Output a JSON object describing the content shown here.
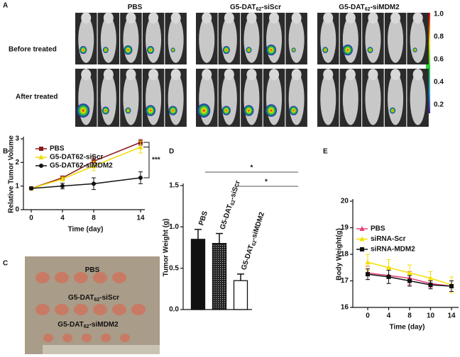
{
  "panel_labels": [
    "A",
    "B",
    "C",
    "D",
    "E"
  ],
  "panel_a": {
    "groups": [
      [
        "PBS"
      ],
      [
        "G5-DAT",
        "62",
        "-siScr"
      ],
      [
        "G5-DAT",
        "62",
        "-siMDM2"
      ]
    ],
    "rows": [
      "Before treated",
      "After treated"
    ],
    "colorbar_ticks": [
      "1.0",
      "0.8",
      "0.6",
      "0.4",
      "0.2"
    ]
  },
  "panel_c": {
    "labels": [
      [
        "PBS"
      ],
      [
        "G5-DAT",
        "62",
        "-siScr"
      ],
      [
        "G5-DAT",
        "62",
        "-siMDM2"
      ]
    ]
  },
  "chart_data": [
    {
      "type": "line",
      "ylabel": "Relative Tumor Volume",
      "xlabel": "Time (day)",
      "x": [
        0,
        4,
        8,
        14
      ],
      "xlim": [
        0,
        14
      ],
      "xticks": [
        0,
        4,
        8,
        14
      ],
      "ylim": [
        0,
        3
      ],
      "yticks": [
        0,
        1,
        2,
        3
      ],
      "series": [
        {
          "name": "PBS",
          "color": "#8b1a1a",
          "marker": "square",
          "values": [
            0.9,
            1.35,
            2.05,
            2.85
          ],
          "errors": [
            0.05,
            0.08,
            0.2,
            0.12
          ]
        },
        {
          "name": "G5-DAT62-siScr",
          "color": "#f0dc00",
          "marker": "triangle",
          "values": [
            0.9,
            1.3,
            1.85,
            2.65
          ],
          "errors": [
            0.05,
            0.08,
            0.2,
            0.25
          ]
        },
        {
          "name": "G5-DAT62-siMDM2",
          "color": "#111111",
          "marker": "circle",
          "values": [
            0.9,
            1.0,
            1.1,
            1.35
          ],
          "errors": [
            0.05,
            0.12,
            0.25,
            0.25
          ]
        }
      ],
      "annotation": "***"
    },
    {
      "type": "bar",
      "ylabel": "Tumor Weight (g)",
      "categories": [
        [
          "PBS"
        ],
        [
          "G5-DAT",
          "62",
          "-siScr"
        ],
        [
          "G5-DAT",
          "62",
          "-siMDM2"
        ]
      ],
      "values": [
        0.85,
        0.8,
        0.35
      ],
      "errors": [
        0.12,
        0.12,
        0.08
      ],
      "fills": [
        "#111111",
        "dots",
        "#ffffff"
      ],
      "ylim": [
        0,
        1.5
      ],
      "yticks": [
        {
          "value": 0,
          "label": "0.0"
        },
        0.5,
        {
          "value": 1,
          "label": "1.0"
        },
        1.5
      ],
      "significance": [
        "*",
        "*"
      ]
    },
    {
      "type": "line",
      "ylabel": "Body Weight(g)",
      "xlabel": "Time (day)",
      "categories": [
        "0",
        "4",
        "8",
        "10",
        "14"
      ],
      "ylim": [
        16,
        20
      ],
      "yticks": [
        16,
        17,
        18,
        19,
        20
      ],
      "series": [
        {
          "name": "PBS",
          "color": "#e8407a",
          "marker": "triangle",
          "values": [
            17.3,
            17.2,
            17.1,
            16.9,
            16.8
          ],
          "errors": [
            0.25,
            0.3,
            0.25,
            0.15,
            0.2
          ]
        },
        {
          "name": "siRNA-Scr",
          "color": "#f2e000",
          "marker": "triangle",
          "values": [
            17.7,
            17.5,
            17.3,
            17.1,
            16.85
          ],
          "errors": [
            0.3,
            0.3,
            0.3,
            0.25,
            0.3
          ]
        },
        {
          "name": "siRNA-MDM2",
          "color": "#111111",
          "marker": "square",
          "values": [
            17.25,
            17.15,
            17.0,
            16.85,
            16.8
          ],
          "errors": [
            0.2,
            0.25,
            0.2,
            0.15,
            0.2
          ]
        }
      ]
    }
  ]
}
